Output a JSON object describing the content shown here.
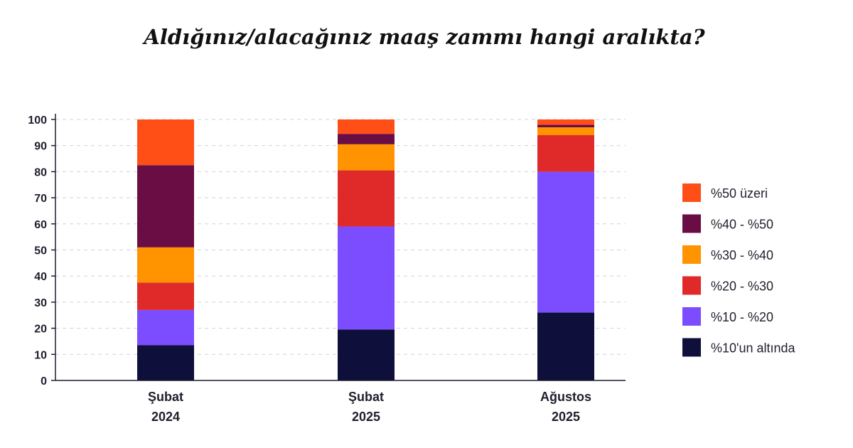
{
  "chart_data": {
    "type": "bar",
    "stacked": true,
    "title": "Aldığınız/alacağınız maaş zammı hangi aralıkta?",
    "xlabel": "",
    "ylabel": "",
    "ylim": [
      0,
      100
    ],
    "yticks": [
      0,
      10,
      20,
      30,
      40,
      50,
      60,
      70,
      80,
      90,
      100
    ],
    "grid": true,
    "legend_position": "right",
    "categories": [
      [
        "Şubat",
        "2024"
      ],
      [
        "Şubat",
        "2025"
      ],
      [
        "Ağustos",
        "2025"
      ]
    ],
    "series": [
      {
        "name": "%10'un altında",
        "color": "#0e0f3a",
        "values": [
          13.5,
          19.5,
          26
        ]
      },
      {
        "name": "%10 - %20",
        "color": "#7c4dff",
        "values": [
          13.5,
          39.5,
          54
        ]
      },
      {
        "name": "%20 - %30",
        "color": "#e02a2a",
        "values": [
          10.5,
          21.5,
          14
        ]
      },
      {
        "name": "%30 - %40",
        "color": "#ff9300",
        "values": [
          13.5,
          10,
          3
        ]
      },
      {
        "name": "%40 - %50",
        "color": "#6b0d45",
        "values": [
          31.5,
          4,
          1
        ]
      },
      {
        "name": "%50 üzeri",
        "color": "#ff4f17",
        "values": [
          17.5,
          5.5,
          2
        ]
      }
    ]
  }
}
